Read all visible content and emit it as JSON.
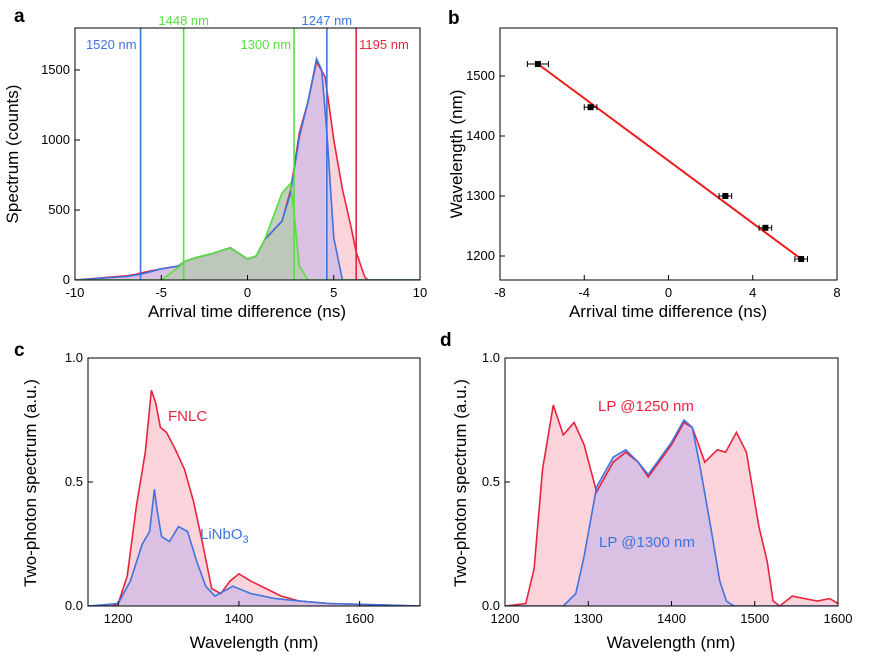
{
  "colors": {
    "red": "#e8233e",
    "blue": "#3f73e0",
    "green": "#55e03c",
    "fill_red": "#f9cdd3",
    "fill_purple": "#d3bde4",
    "fill_green": "#b8c8b4",
    "fit_line": "#ee1c1c"
  },
  "chart_data": [
    {
      "panel": "a",
      "type": "area",
      "xlabel": "Arrival time difference (ns)",
      "ylabel": "Spectrum (counts)",
      "xlim": [
        -10,
        10
      ],
      "ylim": [
        0,
        1800
      ],
      "xticks": [
        "-10",
        "-5",
        "0",
        "5",
        "10"
      ],
      "yticks": [
        "0",
        "500",
        "1000",
        "1500"
      ],
      "markers": [
        {
          "label": "1520 nm",
          "x": -6.2,
          "color": "blue"
        },
        {
          "label": "1448 nm",
          "x": -3.7,
          "color": "green"
        },
        {
          "label": "1300 nm",
          "x": 2.7,
          "color": "green"
        },
        {
          "label": "1247 nm",
          "x": 4.6,
          "color": "blue"
        },
        {
          "label": "1195 nm",
          "x": 6.3,
          "color": "red"
        }
      ],
      "series": [
        {
          "name": "1195 nm cut",
          "color": "red",
          "x": [
            -10,
            -8,
            -7,
            -6.5,
            -6.2,
            -5,
            -4,
            -3.7,
            -3,
            -2,
            -1,
            0,
            0.5,
            1,
            2,
            2.5,
            3,
            3.5,
            4,
            4.5,
            5,
            5.5,
            6,
            6.3,
            6.8,
            7,
            8,
            10
          ],
          "y": [
            0,
            20,
            30,
            40,
            50,
            80,
            100,
            130,
            160,
            190,
            230,
            150,
            170,
            290,
            420,
            640,
            1050,
            1270,
            1560,
            1450,
            1000,
            650,
            380,
            200,
            20,
            0,
            0,
            0
          ]
        },
        {
          "name": "1247 nm cut",
          "color": "blue",
          "x": [
            -10,
            -7,
            -6.2,
            -5,
            -4,
            -3.7,
            -3,
            -2,
            -1,
            0,
            0.5,
            1,
            2,
            2.5,
            3,
            3.5,
            4,
            4.3,
            4.6,
            5,
            5.5,
            10
          ],
          "y": [
            0,
            25,
            40,
            80,
            100,
            130,
            160,
            190,
            230,
            150,
            170,
            290,
            420,
            620,
            1020,
            1270,
            1580,
            1500,
            1050,
            300,
            0,
            0
          ]
        },
        {
          "name": "1300 nm cut",
          "color": "green",
          "x": [
            -10,
            -5,
            -4,
            -3.7,
            -3,
            -2,
            -1,
            0,
            0.5,
            1,
            2,
            2.5,
            2.7,
            3,
            3.5,
            10
          ],
          "y": [
            0,
            0,
            90,
            130,
            160,
            190,
            230,
            150,
            170,
            290,
            620,
            690,
            480,
            100,
            0,
            0
          ]
        }
      ]
    },
    {
      "panel": "b",
      "type": "scatter",
      "xlabel": "Arrival time difference (ns)",
      "ylabel": "Wavelength (nm)",
      "xlim": [
        -8,
        8
      ],
      "ylim": [
        1160,
        1580
      ],
      "xticks": [
        "-8",
        "-4",
        "0",
        "4",
        "8"
      ],
      "yticks": [
        "1200",
        "1300",
        "1400",
        "1500"
      ],
      "x": [
        -6.2,
        -3.7,
        2.7,
        4.6,
        6.3
      ],
      "y": [
        1520,
        1448,
        1300,
        1247,
        1195
      ],
      "xerr": [
        0.5,
        0.3,
        0.3,
        0.3,
        0.3
      ],
      "fit": {
        "x": [
          -6.2,
          6.3
        ],
        "y": [
          1520,
          1195
        ],
        "color": "red"
      }
    },
    {
      "panel": "c",
      "type": "area",
      "xlabel": "Wavelength (nm)",
      "ylabel": "Two-photon spectrum (a.u.)",
      "xlim": [
        1150,
        1700
      ],
      "ylim": [
        0,
        1.0
      ],
      "xticks": [
        "1200",
        "1400",
        "1600"
      ],
      "yticks": [
        "0.0",
        "0.5",
        "1.0"
      ],
      "series": [
        {
          "name": "FNLC",
          "label": "FNLC",
          "color": "red",
          "x": [
            1150,
            1190,
            1200,
            1215,
            1230,
            1245,
            1255,
            1262,
            1270,
            1280,
            1295,
            1310,
            1325,
            1340,
            1355,
            1370,
            1385,
            1400,
            1420,
            1445,
            1470,
            1500,
            1550,
            1700
          ],
          "y": [
            0,
            0,
            0.01,
            0.12,
            0.4,
            0.62,
            0.87,
            0.82,
            0.72,
            0.7,
            0.63,
            0.55,
            0.42,
            0.25,
            0.07,
            0.05,
            0.1,
            0.13,
            0.1,
            0.07,
            0.04,
            0.02,
            0.01,
            0
          ]
        },
        {
          "name": "LiNbO3",
          "label": "LiNbO",
          "label_sub": "3",
          "color": "blue",
          "x": [
            1150,
            1200,
            1220,
            1240,
            1252,
            1260,
            1265,
            1272,
            1285,
            1300,
            1315,
            1330,
            1345,
            1360,
            1390,
            1420,
            1460,
            1500,
            1550,
            1700
          ],
          "y": [
            0,
            0.01,
            0.1,
            0.25,
            0.3,
            0.47,
            0.38,
            0.28,
            0.26,
            0.32,
            0.3,
            0.18,
            0.08,
            0.04,
            0.08,
            0.05,
            0.03,
            0.02,
            0.01,
            0
          ]
        }
      ]
    },
    {
      "panel": "d",
      "type": "area",
      "xlabel": "Wavelength (nm)",
      "ylabel": "Two-photon spectrum (a.u.)",
      "xlim": [
        1200,
        1600
      ],
      "ylim": [
        0,
        1.0
      ],
      "xticks": [
        "1200",
        "1300",
        "1400",
        "1500",
        "1600"
      ],
      "yticks": [
        "0.0",
        "0.5",
        "1.0"
      ],
      "series": [
        {
          "name": "LP @1250 nm",
          "label": "LP @1250 nm",
          "color": "red",
          "x": [
            1200,
            1225,
            1235,
            1245,
            1258,
            1270,
            1283,
            1295,
            1310,
            1330,
            1345,
            1360,
            1372,
            1385,
            1400,
            1415,
            1425,
            1440,
            1455,
            1465,
            1478,
            1490,
            1505,
            1515,
            1522,
            1530,
            1545,
            1560,
            1575,
            1590,
            1600
          ],
          "y": [
            0,
            0.01,
            0.15,
            0.55,
            0.81,
            0.69,
            0.74,
            0.65,
            0.46,
            0.58,
            0.62,
            0.58,
            0.52,
            0.58,
            0.65,
            0.74,
            0.72,
            0.58,
            0.63,
            0.62,
            0.7,
            0.62,
            0.32,
            0.18,
            0.02,
            0.0,
            0.04,
            0.03,
            0.02,
            0.03,
            0.01
          ]
        },
        {
          "name": "LP @1300 nm",
          "label": "LP @1300 nm",
          "color": "blue",
          "x": [
            1200,
            1270,
            1285,
            1295,
            1310,
            1330,
            1345,
            1360,
            1372,
            1385,
            1400,
            1415,
            1425,
            1435,
            1448,
            1458,
            1466,
            1475,
            1600
          ],
          "y": [
            0,
            0,
            0.05,
            0.2,
            0.48,
            0.6,
            0.63,
            0.58,
            0.53,
            0.59,
            0.66,
            0.75,
            0.72,
            0.55,
            0.3,
            0.1,
            0.02,
            0,
            0
          ]
        }
      ]
    }
  ],
  "panel_labels": [
    "a",
    "b",
    "c",
    "d"
  ]
}
